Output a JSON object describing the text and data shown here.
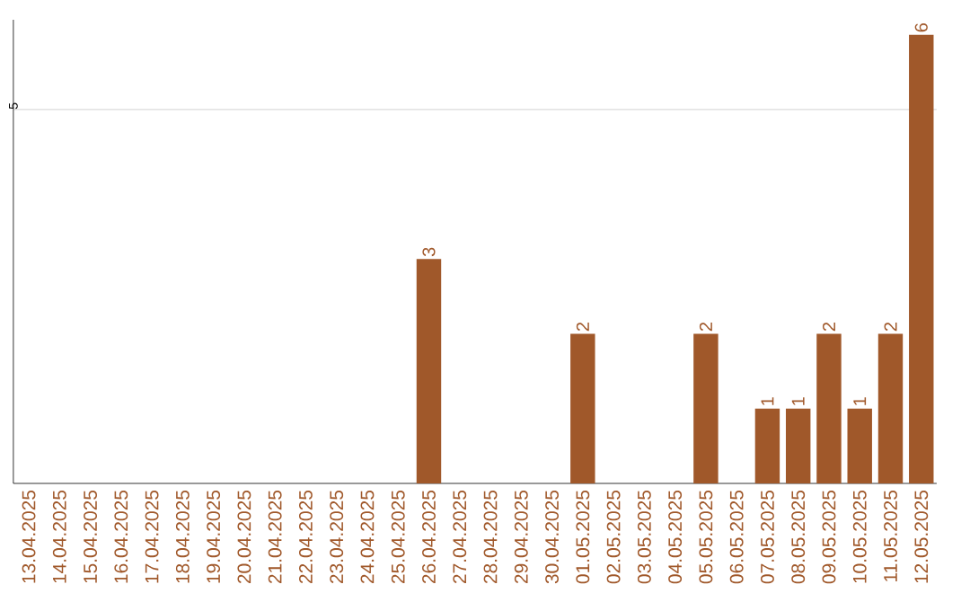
{
  "chart_data": {
    "type": "bar",
    "categories": [
      "13.04.2025",
      "14.04.2025",
      "15.04.2025",
      "16.04.2025",
      "17.04.2025",
      "18.04.2025",
      "19.04.2025",
      "20.04.2025",
      "21.04.2025",
      "22.04.2025",
      "23.04.2025",
      "24.04.2025",
      "25.04.2025",
      "26.04.2025",
      "27.04.2025",
      "28.04.2025",
      "29.04.2025",
      "30.04.2025",
      "01.05.2025",
      "02.05.2025",
      "03.05.2025",
      "04.05.2025",
      "05.05.2025",
      "06.05.2025",
      "07.05.2025",
      "08.05.2025",
      "09.05.2025",
      "10.05.2025",
      "11.05.2025",
      "12.05.2025"
    ],
    "values": [
      null,
      null,
      null,
      null,
      null,
      null,
      null,
      null,
      null,
      null,
      null,
      null,
      null,
      3,
      null,
      null,
      null,
      null,
      2,
      null,
      null,
      null,
      2,
      null,
      1,
      1,
      2,
      1,
      2,
      6
    ],
    "data_labels": true,
    "color": "#a0582a",
    "ylim": [
      0,
      6.2
    ],
    "yticks": [
      5
    ],
    "grid": "y"
  }
}
